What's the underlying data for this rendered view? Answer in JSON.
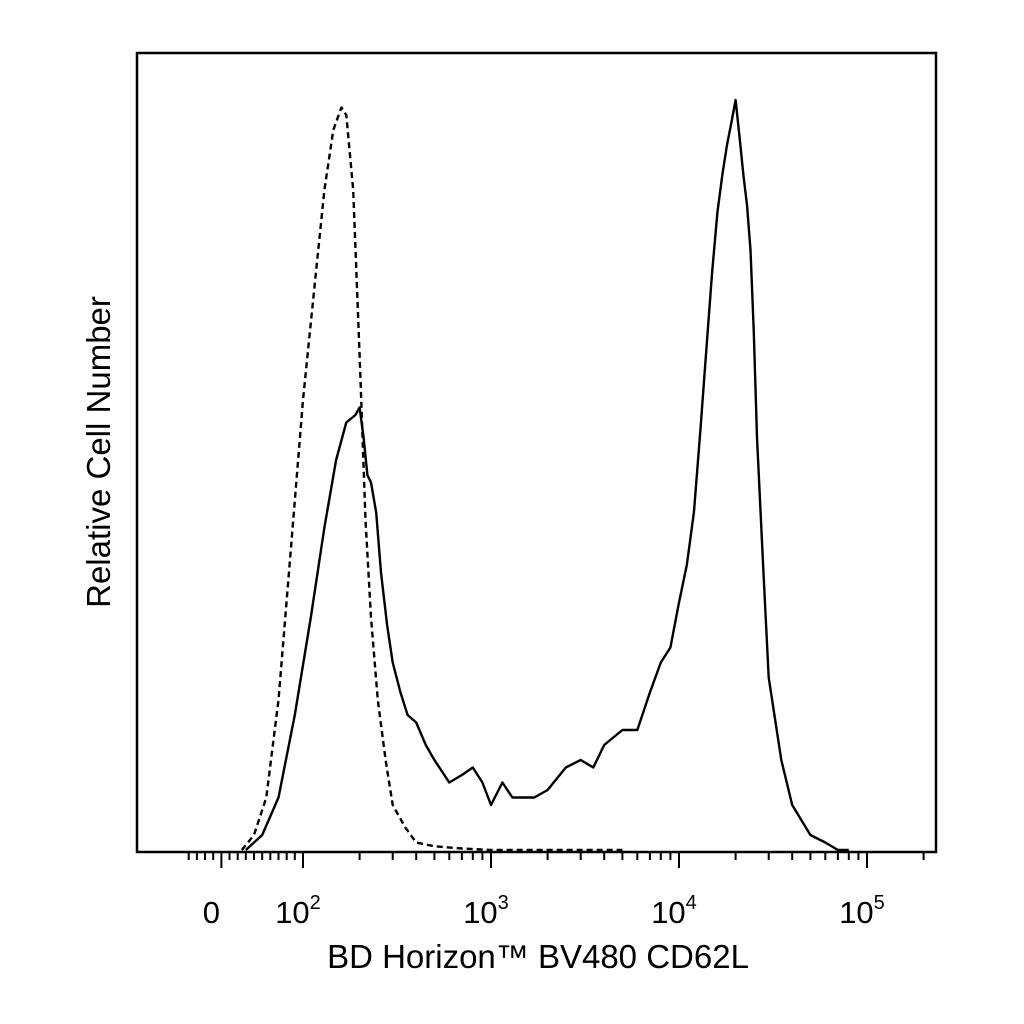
{
  "chart_data": {
    "type": "line",
    "title": "",
    "xlabel": "BD Horizon™ BV480 CD62L",
    "ylabel": "Relative Cell Number",
    "xscale": "biexponential (linear near 0, log above ~10^2)",
    "xlim": [
      -40,
      250000
    ],
    "ylim": [
      0,
      1
    ],
    "x_tick_labels": [
      {
        "value": 0,
        "base": "0",
        "exp": ""
      },
      {
        "value": 100,
        "base": "10",
        "exp": "2"
      },
      {
        "value": 1000,
        "base": "10",
        "exp": "3"
      },
      {
        "value": 10000,
        "base": "10",
        "exp": "4"
      },
      {
        "value": 100000,
        "base": "10",
        "exp": "5"
      }
    ],
    "y_ticks": [],
    "grid": false,
    "legend": "none",
    "colors": {
      "line": "#000000",
      "frame": "#000000",
      "background": "#ffffff"
    },
    "series": [
      {
        "style": "dashed",
        "x": [
          25,
          40,
          55,
          70,
          85,
          100,
          115,
          130,
          145,
          160,
          170,
          185,
          200,
          215,
          230,
          250,
          275,
          300,
          350,
          400,
          500,
          700,
          1000,
          2000,
          5000
        ],
        "y": [
          0.0,
          0.02,
          0.07,
          0.2,
          0.4,
          0.6,
          0.75,
          0.88,
          0.96,
          0.99,
          0.98,
          0.88,
          0.66,
          0.44,
          0.31,
          0.2,
          0.12,
          0.06,
          0.03,
          0.01,
          0.005,
          0.002,
          0.0,
          0.0,
          0.0
        ]
      },
      {
        "style": "solid",
        "x": [
          30,
          50,
          70,
          90,
          110,
          130,
          150,
          170,
          190,
          200,
          210,
          220,
          230,
          245,
          260,
          280,
          300,
          330,
          360,
          400,
          450,
          500,
          600,
          700,
          800,
          900,
          1000,
          1150,
          1300,
          1500,
          1700,
          2000,
          2500,
          3000,
          3500,
          4000,
          5000,
          6000,
          7000,
          8000,
          9000,
          10000,
          11000,
          12000,
          13000,
          14000,
          15000,
          16000,
          17000,
          18000,
          19000,
          20000,
          21000,
          22000,
          23000,
          24000,
          25000,
          26000,
          28000,
          30000,
          35000,
          40000,
          50000,
          60000,
          70000,
          80000
        ],
        "y": [
          0.0,
          0.02,
          0.07,
          0.18,
          0.31,
          0.43,
          0.52,
          0.57,
          0.58,
          0.59,
          0.55,
          0.5,
          0.49,
          0.45,
          0.37,
          0.3,
          0.25,
          0.21,
          0.18,
          0.17,
          0.14,
          0.12,
          0.09,
          0.1,
          0.11,
          0.09,
          0.06,
          0.09,
          0.07,
          0.07,
          0.07,
          0.08,
          0.11,
          0.12,
          0.11,
          0.14,
          0.16,
          0.16,
          0.21,
          0.25,
          0.27,
          0.33,
          0.38,
          0.45,
          0.56,
          0.67,
          0.77,
          0.85,
          0.9,
          0.94,
          0.97,
          1.0,
          0.95,
          0.9,
          0.86,
          0.8,
          0.69,
          0.55,
          0.38,
          0.23,
          0.12,
          0.06,
          0.02,
          0.01,
          0.0,
          0.0
        ]
      }
    ]
  }
}
